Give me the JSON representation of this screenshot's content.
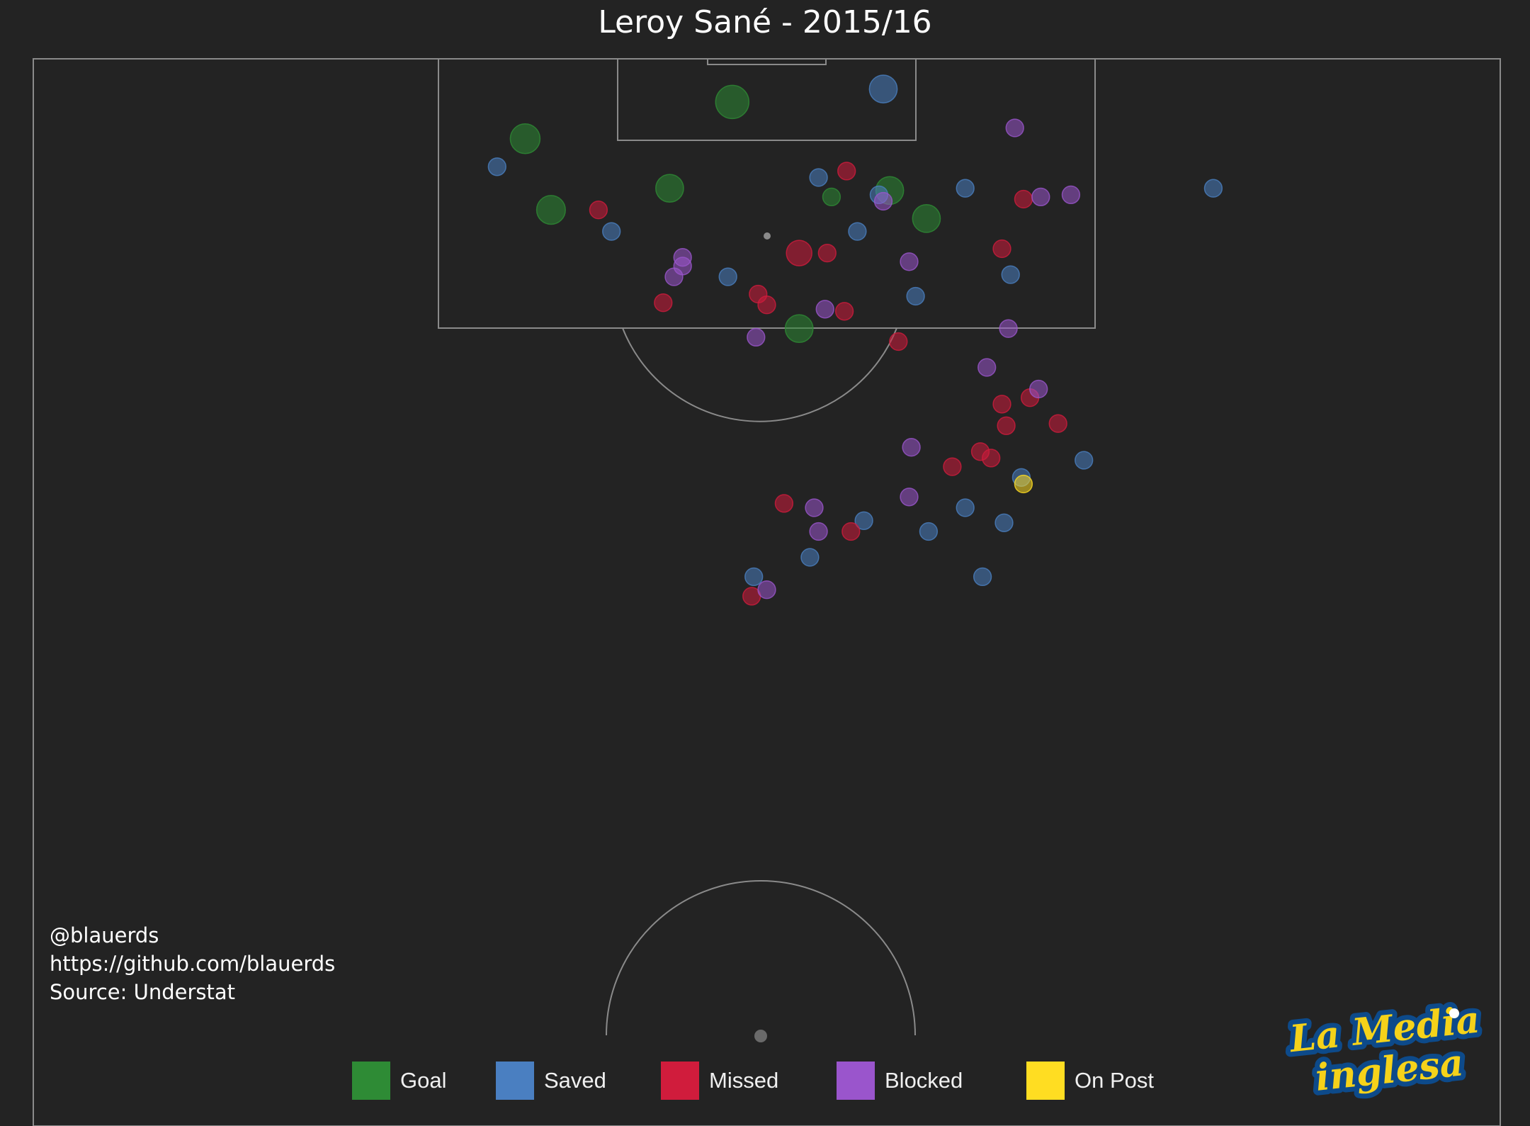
{
  "title": "Leroy Sané - 2015/16",
  "credits": {
    "handle": "@blauerds",
    "github": "https://github.com/blauerds",
    "source": "Source: Understat"
  },
  "colors": {
    "background": "#232323",
    "lines": "#8a8a8a",
    "Goal": "#2e8b35",
    "Saved": "#4a7fc1",
    "Missed": "#d01c3c",
    "Blocked": "#9a55cc",
    "On Post": "#ffdd22"
  },
  "legend": [
    {
      "label": "Goal",
      "color": "#2e8b35"
    },
    {
      "label": "Saved",
      "color": "#4a7fc1"
    },
    {
      "label": "Missed",
      "color": "#d01c3c"
    },
    {
      "label": "Blocked",
      "color": "#9a55cc"
    },
    {
      "label": "On Post",
      "color": "#ffdd22"
    }
  ],
  "logo": {
    "text_line1": "La Media",
    "text_line2": "inglesa"
  },
  "chart_data": {
    "type": "scatter",
    "description_units": "pitch coordinates in metres from the attacked goal line (y) and from left touchline (x); pitch width 68, goal at top",
    "xlim": [
      0,
      68
    ],
    "ylim": [
      0,
      52.5
    ],
    "categories": [
      "Goal",
      "Saved",
      "Missed",
      "Blocked",
      "On Post"
    ],
    "shots": [
      {
        "x": 32.4,
        "y": 2.0,
        "xg": 0.3,
        "result": "Goal"
      },
      {
        "x": 22.8,
        "y": 3.7,
        "xg": 0.22,
        "result": "Goal"
      },
      {
        "x": 29.5,
        "y": 6.0,
        "xg": 0.18,
        "result": "Goal"
      },
      {
        "x": 39.7,
        "y": 6.1,
        "xg": 0.18,
        "result": "Goal"
      },
      {
        "x": 24.0,
        "y": 7.0,
        "xg": 0.2,
        "result": "Goal"
      },
      {
        "x": 41.4,
        "y": 7.4,
        "xg": 0.18,
        "result": "Goal"
      },
      {
        "x": 37.0,
        "y": 6.4,
        "xg": 0.04,
        "result": "Goal"
      },
      {
        "x": 35.5,
        "y": 12.5,
        "xg": 0.18,
        "result": "Goal"
      },
      {
        "x": 39.4,
        "y": 1.4,
        "xg": 0.18,
        "result": "Saved"
      },
      {
        "x": 21.5,
        "y": 5.0,
        "xg": 0.04,
        "result": "Saved"
      },
      {
        "x": 26.8,
        "y": 8.0,
        "xg": 0.04,
        "result": "Saved"
      },
      {
        "x": 36.4,
        "y": 5.5,
        "xg": 0.04,
        "result": "Saved"
      },
      {
        "x": 39.2,
        "y": 6.3,
        "xg": 0.04,
        "result": "Saved"
      },
      {
        "x": 43.2,
        "y": 6.0,
        "xg": 0.04,
        "result": "Saved"
      },
      {
        "x": 38.2,
        "y": 8.0,
        "xg": 0.04,
        "result": "Saved"
      },
      {
        "x": 54.7,
        "y": 6.0,
        "xg": 0.04,
        "result": "Saved"
      },
      {
        "x": 32.2,
        "y": 10.1,
        "xg": 0.04,
        "result": "Saved"
      },
      {
        "x": 45.3,
        "y": 10.0,
        "xg": 0.04,
        "result": "Saved"
      },
      {
        "x": 40.9,
        "y": 11.0,
        "xg": 0.04,
        "result": "Saved"
      },
      {
        "x": 48.7,
        "y": 18.6,
        "xg": 0.04,
        "result": "Saved"
      },
      {
        "x": 45.8,
        "y": 19.4,
        "xg": 0.04,
        "result": "Saved"
      },
      {
        "x": 43.2,
        "y": 20.8,
        "xg": 0.04,
        "result": "Saved"
      },
      {
        "x": 38.5,
        "y": 21.4,
        "xg": 0.04,
        "result": "Saved"
      },
      {
        "x": 41.5,
        "y": 21.9,
        "xg": 0.04,
        "result": "Saved"
      },
      {
        "x": 45.0,
        "y": 21.5,
        "xg": 0.04,
        "result": "Saved"
      },
      {
        "x": 36.0,
        "y": 23.1,
        "xg": 0.04,
        "result": "Saved"
      },
      {
        "x": 33.4,
        "y": 24.0,
        "xg": 0.04,
        "result": "Saved"
      },
      {
        "x": 44.0,
        "y": 24.0,
        "xg": 0.04,
        "result": "Saved"
      },
      {
        "x": 35.5,
        "y": 9.0,
        "xg": 0.14,
        "result": "Missed"
      },
      {
        "x": 26.2,
        "y": 7.0,
        "xg": 0.04,
        "result": "Missed"
      },
      {
        "x": 37.7,
        "y": 5.2,
        "xg": 0.04,
        "result": "Missed"
      },
      {
        "x": 45.9,
        "y": 6.5,
        "xg": 0.04,
        "result": "Missed"
      },
      {
        "x": 36.8,
        "y": 9.0,
        "xg": 0.04,
        "result": "Missed"
      },
      {
        "x": 44.9,
        "y": 8.8,
        "xg": 0.04,
        "result": "Missed"
      },
      {
        "x": 29.2,
        "y": 11.3,
        "xg": 0.04,
        "result": "Missed"
      },
      {
        "x": 33.6,
        "y": 10.9,
        "xg": 0.04,
        "result": "Missed"
      },
      {
        "x": 34.0,
        "y": 11.4,
        "xg": 0.04,
        "result": "Missed"
      },
      {
        "x": 37.6,
        "y": 11.7,
        "xg": 0.04,
        "result": "Missed"
      },
      {
        "x": 40.1,
        "y": 13.1,
        "xg": 0.04,
        "result": "Missed"
      },
      {
        "x": 44.9,
        "y": 16.0,
        "xg": 0.04,
        "result": "Missed"
      },
      {
        "x": 46.2,
        "y": 15.7,
        "xg": 0.04,
        "result": "Missed"
      },
      {
        "x": 47.5,
        "y": 16.9,
        "xg": 0.04,
        "result": "Missed"
      },
      {
        "x": 45.1,
        "y": 17.0,
        "xg": 0.04,
        "result": "Missed"
      },
      {
        "x": 43.9,
        "y": 18.2,
        "xg": 0.04,
        "result": "Missed"
      },
      {
        "x": 44.4,
        "y": 18.5,
        "xg": 0.04,
        "result": "Missed"
      },
      {
        "x": 42.6,
        "y": 18.9,
        "xg": 0.04,
        "result": "Missed"
      },
      {
        "x": 34.8,
        "y": 20.6,
        "xg": 0.04,
        "result": "Missed"
      },
      {
        "x": 37.9,
        "y": 21.9,
        "xg": 0.04,
        "result": "Missed"
      },
      {
        "x": 33.3,
        "y": 24.9,
        "xg": 0.04,
        "result": "Missed"
      },
      {
        "x": 45.5,
        "y": 3.2,
        "xg": 0.04,
        "result": "Blocked"
      },
      {
        "x": 46.7,
        "y": 6.4,
        "xg": 0.04,
        "result": "Blocked"
      },
      {
        "x": 48.1,
        "y": 6.3,
        "xg": 0.04,
        "result": "Blocked"
      },
      {
        "x": 39.4,
        "y": 6.6,
        "xg": 0.04,
        "result": "Blocked"
      },
      {
        "x": 30.1,
        "y": 9.2,
        "xg": 0.04,
        "result": "Blocked"
      },
      {
        "x": 30.1,
        "y": 9.6,
        "xg": 0.04,
        "result": "Blocked"
      },
      {
        "x": 29.7,
        "y": 10.1,
        "xg": 0.04,
        "result": "Blocked"
      },
      {
        "x": 40.6,
        "y": 9.4,
        "xg": 0.04,
        "result": "Blocked"
      },
      {
        "x": 36.7,
        "y": 11.6,
        "xg": 0.04,
        "result": "Blocked"
      },
      {
        "x": 45.2,
        "y": 12.5,
        "xg": 0.04,
        "result": "Blocked"
      },
      {
        "x": 33.5,
        "y": 12.9,
        "xg": 0.04,
        "result": "Blocked"
      },
      {
        "x": 44.2,
        "y": 14.3,
        "xg": 0.04,
        "result": "Blocked"
      },
      {
        "x": 46.6,
        "y": 15.3,
        "xg": 0.04,
        "result": "Blocked"
      },
      {
        "x": 40.7,
        "y": 18.0,
        "xg": 0.04,
        "result": "Blocked"
      },
      {
        "x": 40.6,
        "y": 20.3,
        "xg": 0.04,
        "result": "Blocked"
      },
      {
        "x": 36.2,
        "y": 20.8,
        "xg": 0.04,
        "result": "Blocked"
      },
      {
        "x": 36.4,
        "y": 21.9,
        "xg": 0.04,
        "result": "Blocked"
      },
      {
        "x": 34.0,
        "y": 24.6,
        "xg": 0.04,
        "result": "Blocked"
      },
      {
        "x": 45.9,
        "y": 19.7,
        "xg": 0.04,
        "result": "On Post"
      }
    ]
  }
}
